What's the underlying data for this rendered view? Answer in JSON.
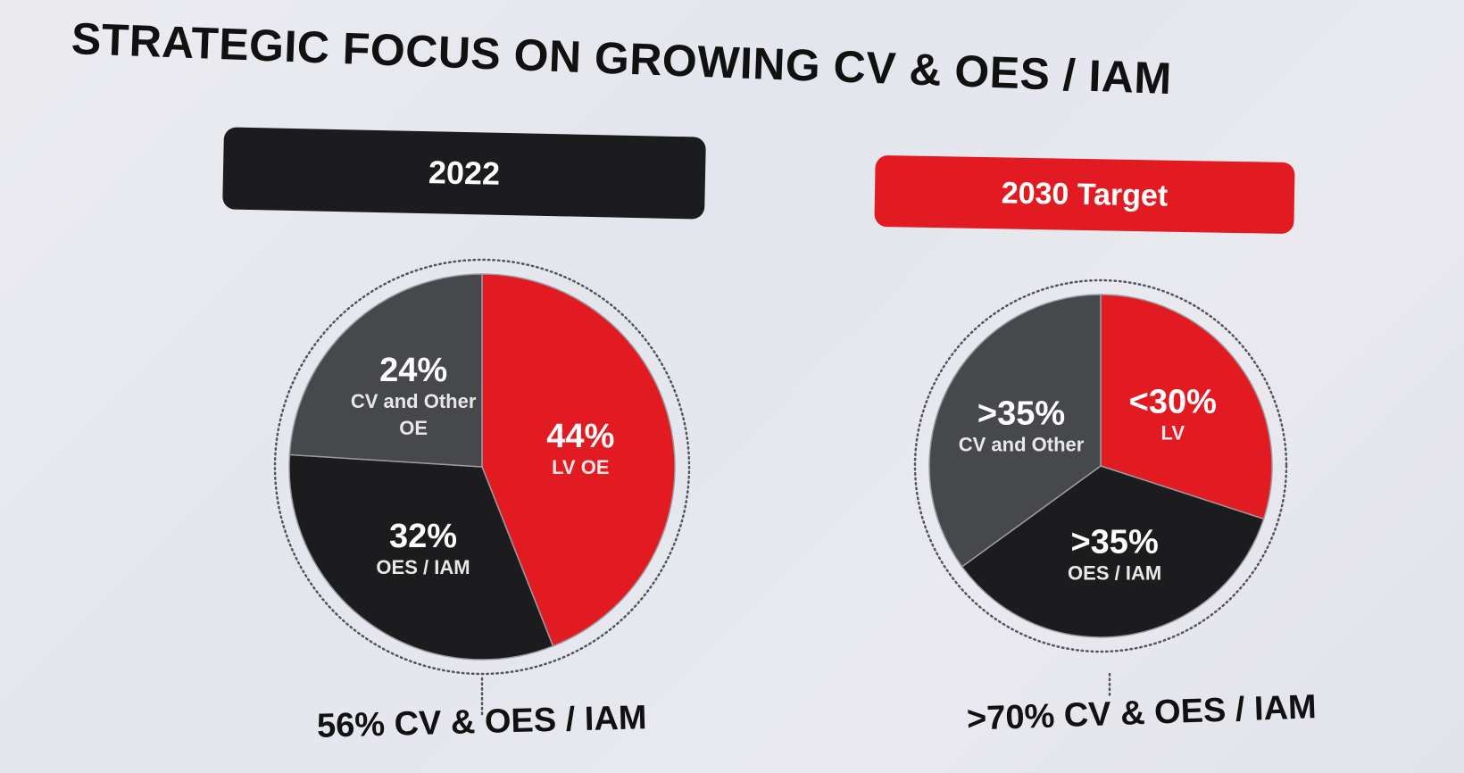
{
  "title": "STRATEGIC FOCUS ON GROWING CV & OES / IAM",
  "tabs": {
    "left": "2022",
    "right": "2030 Target"
  },
  "colors": {
    "red": "#e21b23",
    "black": "#1c1c1e",
    "gray": "#46484b"
  },
  "chart_data": [
    {
      "type": "pie",
      "title": "2022",
      "slices": [
        {
          "label_value": "44%",
          "label_text": [
            "LV OE"
          ],
          "value": 44,
          "color": "#e21b23"
        },
        {
          "label_value": "32%",
          "label_text": [
            "OES / IAM"
          ],
          "value": 32,
          "color": "#1c1c1e"
        },
        {
          "label_value": "24%",
          "label_text": [
            "CV and Other",
            "OE"
          ],
          "value": 24,
          "color": "#46484b"
        }
      ],
      "footer": "56% CV & OES / IAM"
    },
    {
      "type": "pie",
      "title": "2030 Target",
      "slices": [
        {
          "label_value": "<30%",
          "label_text": [
            "LV"
          ],
          "value": 30,
          "color": "#e21b23"
        },
        {
          "label_value": ">35%",
          "label_text": [
            "OES / IAM"
          ],
          "value": 35,
          "color": "#1c1c1e"
        },
        {
          "label_value": ">35%",
          "label_text": [
            "CV and Other"
          ],
          "value": 35,
          "color": "#46484b"
        }
      ],
      "footer": ">70% CV & OES / IAM"
    }
  ]
}
